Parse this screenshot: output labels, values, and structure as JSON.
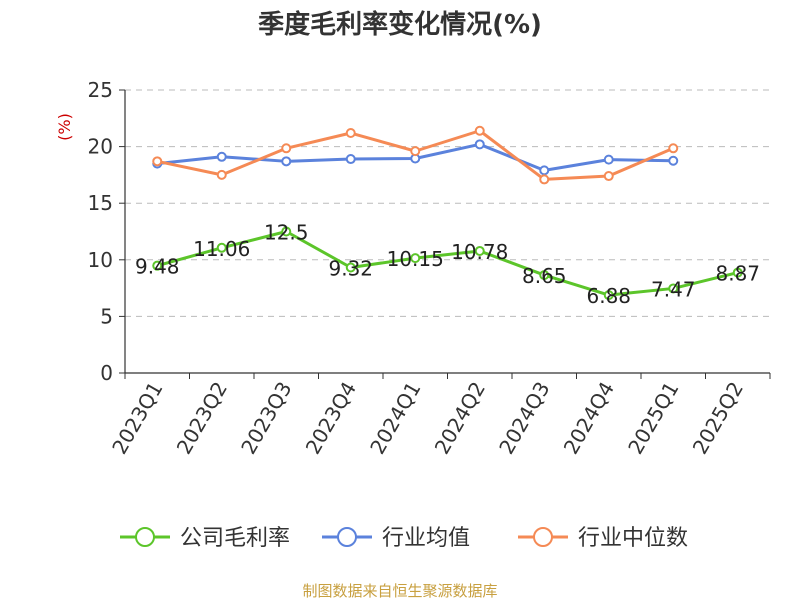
{
  "chart_data": {
    "type": "line",
    "title": "季度毛利率变化情况(%)",
    "ylabel": "(%)",
    "xlabel": "",
    "ylim": [
      0,
      25
    ],
    "yticks": [
      0,
      5,
      10,
      15,
      20,
      25
    ],
    "grid": true,
    "legend_position": "bottom",
    "categories": [
      "2023Q1",
      "2023Q2",
      "2023Q3",
      "2023Q4",
      "2024Q1",
      "2024Q2",
      "2024Q3",
      "2024Q4",
      "2025Q1",
      "2025Q2"
    ],
    "series": [
      {
        "name": "公司毛利率",
        "color": "#5cc52a",
        "show_labels": true,
        "values": [
          9.48,
          11.06,
          12.5,
          9.32,
          10.15,
          10.78,
          8.65,
          6.88,
          7.47,
          8.87
        ]
      },
      {
        "name": "行业均值",
        "color": "#5b82dc",
        "show_labels": false,
        "values": [
          18.5,
          19.1,
          18.7,
          18.9,
          18.95,
          20.2,
          17.9,
          18.85,
          18.75,
          null
        ]
      },
      {
        "name": "行业中位数",
        "color": "#f58a55",
        "show_labels": false,
        "values": [
          18.7,
          17.5,
          19.85,
          21.2,
          19.6,
          21.4,
          17.1,
          17.4,
          19.85,
          null
        ]
      }
    ]
  },
  "footer": {
    "source": "制图数据来自恒生聚源数据库"
  }
}
